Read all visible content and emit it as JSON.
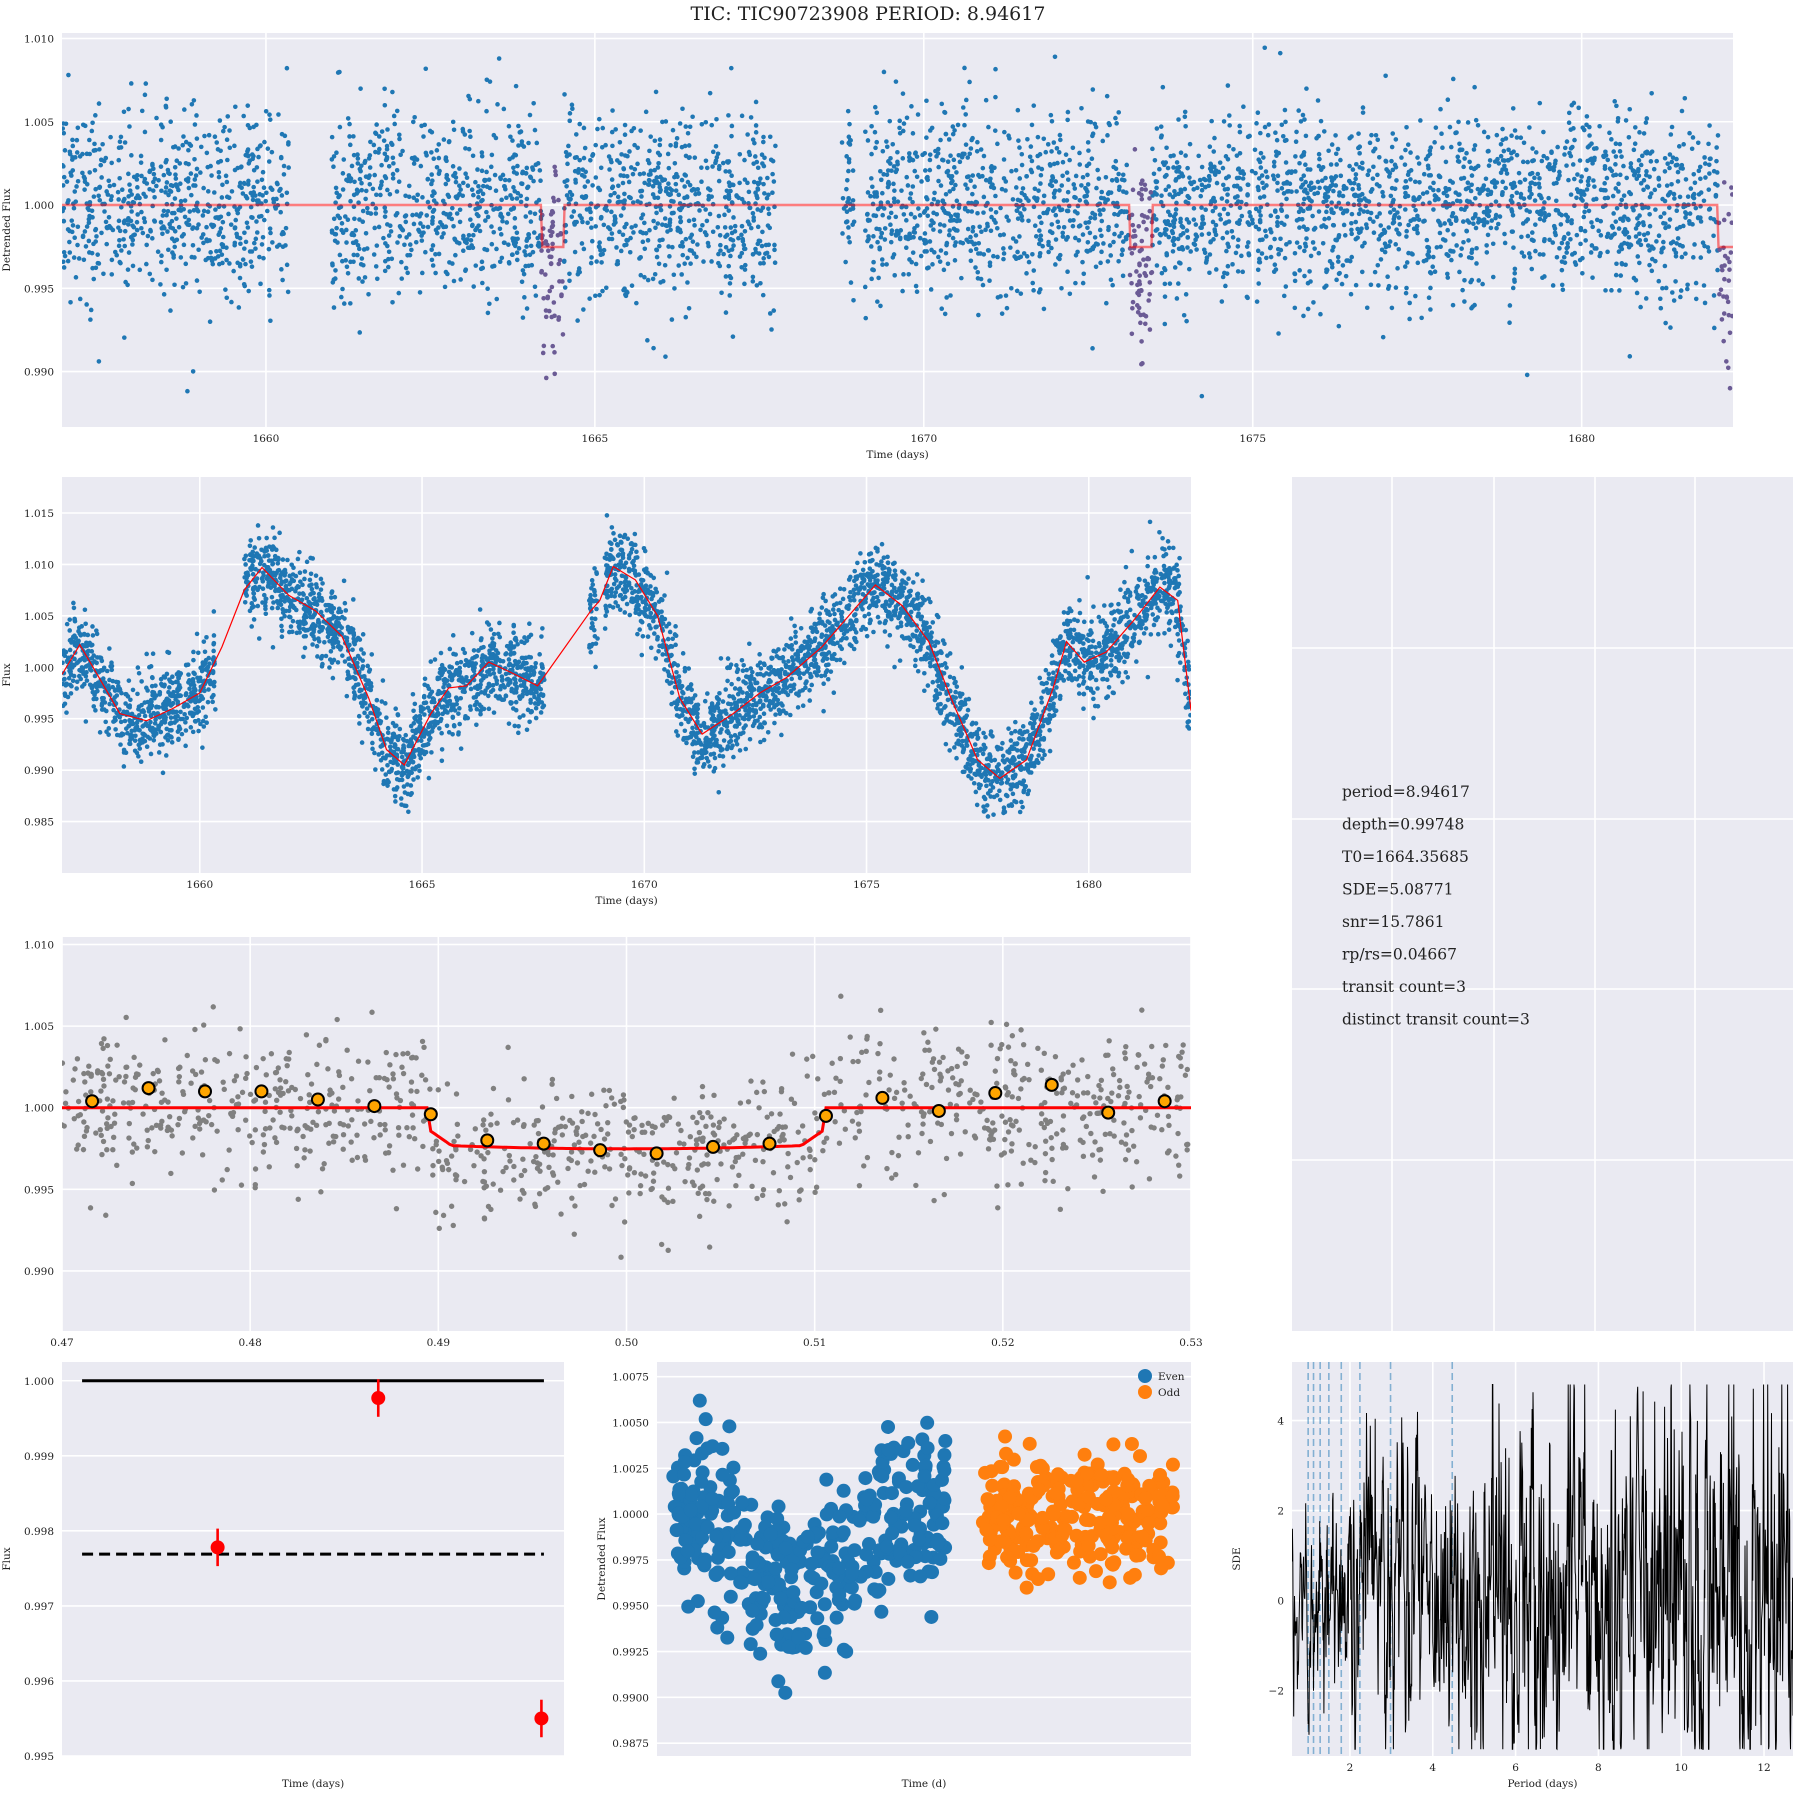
{
  "title": "TIC: TIC90723908 PERIOD: 8.94617",
  "colors": {
    "axes_bg": "#eaeaf2",
    "grid": "#ffffff",
    "blue": "#1f77b4",
    "orange": "#ff7f0e",
    "red": "#ff0000",
    "gray": "#808080",
    "transit_purple": "#6b5b95",
    "bin_fill": "#ffa500"
  },
  "chart_data": [
    {
      "id": "detrended-lightcurve",
      "type": "scatter",
      "title": "",
      "xlabel": "Time (days)",
      "ylabel": "Detrended Flux",
      "xlim": [
        1656.9,
        1682.3
      ],
      "ylim": [
        0.98667,
        1.01033
      ],
      "xticks": [
        1660,
        1665,
        1670,
        1675,
        1680
      ],
      "yticks": [
        "0.990",
        "0.995",
        "1.000",
        "1.005",
        "1.010"
      ],
      "yticks_values": [
        0.99,
        0.995,
        1.0,
        1.005,
        1.01
      ],
      "grid": true,
      "data_segments": [
        [
          1656.9,
          1660.35
        ],
        [
          1661.0,
          1667.75
        ],
        [
          1668.75,
          1668.95
        ],
        [
          1669.1,
          1682.3
        ]
      ],
      "scatter_sigma": 0.0028,
      "model_level": 1.0,
      "transit_depth": 0.99748,
      "transit_epochs": [
        1664.357,
        1673.303,
        1682.249
      ],
      "transit_half_width": 0.17
    },
    {
      "id": "raw-lightcurve",
      "type": "scatter",
      "title": "",
      "xlabel": "Time (days)",
      "ylabel": "Flux",
      "xlim": [
        1656.9,
        1682.3
      ],
      "ylim": [
        0.98,
        1.0185
      ],
      "xticks": [
        1660,
        1665,
        1670,
        1675,
        1680
      ],
      "yticks": [
        "0.985",
        "0.990",
        "0.995",
        "1.000",
        "1.005",
        "1.010",
        "1.015"
      ],
      "yticks_values": [
        0.985,
        0.99,
        0.995,
        1.0,
        1.005,
        1.01,
        1.015
      ],
      "grid": true,
      "trend_x": [
        1656.9,
        1657.3,
        1657.6,
        1658.2,
        1658.8,
        1659.4,
        1660.0,
        1660.5,
        1661.0,
        1661.4,
        1662.0,
        1662.6,
        1663.2,
        1663.8,
        1664.2,
        1664.6,
        1665.2,
        1665.6,
        1666.0,
        1666.5,
        1667.0,
        1667.6,
        1668.8,
        1669.0,
        1669.3,
        1669.8,
        1670.3,
        1670.8,
        1671.3,
        1672.0,
        1672.6,
        1673.2,
        1674.0,
        1674.6,
        1675.2,
        1675.8,
        1676.4,
        1676.9,
        1677.5,
        1678.0,
        1678.6,
        1679.2,
        1679.5,
        1679.9,
        1680.4,
        1681.0,
        1681.6,
        1682.0,
        1682.3
      ],
      "trend_y": [
        0.9993,
        1.0022,
        1.0,
        0.9955,
        0.9948,
        0.996,
        0.9975,
        1.002,
        1.0075,
        1.0097,
        1.007,
        1.0055,
        1.003,
        0.997,
        0.992,
        0.9905,
        0.9955,
        0.998,
        0.9982,
        1.0005,
        0.9995,
        0.9982,
        1.0055,
        1.0065,
        1.0098,
        1.0085,
        1.005,
        0.997,
        0.9935,
        0.9955,
        0.9975,
        0.999,
        1.002,
        1.005,
        1.008,
        1.006,
        1.0025,
        0.997,
        0.991,
        0.9892,
        0.991,
        0.998,
        1.0025,
        1.0005,
        1.0015,
        1.0045,
        1.0078,
        1.0065,
        0.9958
      ],
      "scatter_sigma": 0.0021
    },
    {
      "id": "phase-folded",
      "type": "scatter",
      "title": "",
      "xlabel": "",
      "ylabel": "",
      "xlim": [
        0.47,
        0.53
      ],
      "ylim": [
        0.98632,
        1.01046
      ],
      "xticks": [
        "0.47",
        "0.48",
        "0.49",
        "0.50",
        "0.51",
        "0.52",
        "0.53"
      ],
      "xticks_values": [
        0.47,
        0.48,
        0.49,
        0.5,
        0.51,
        0.52,
        0.53
      ],
      "yticks": [
        "0.990",
        "0.995",
        "1.000",
        "1.005",
        "1.010"
      ],
      "yticks_values": [
        0.99,
        0.995,
        1.0,
        1.005,
        1.01
      ],
      "grid": true,
      "transit_start": 0.4895,
      "transit_end": 0.5105,
      "transit_depth": 0.99748,
      "binned": {
        "x": [
          0.4716,
          0.4746,
          0.4776,
          0.4806,
          0.4836,
          0.4866,
          0.4896,
          0.4926,
          0.4956,
          0.4986,
          0.5016,
          0.5046,
          0.5076,
          0.5106,
          0.5136,
          0.5166,
          0.5196,
          0.5226,
          0.5256,
          0.5286
        ],
        "y": [
          1.0004,
          1.0012,
          1.001,
          1.001,
          1.0005,
          1.0001,
          0.9996,
          0.998,
          0.9978,
          0.9974,
          0.9972,
          0.9976,
          0.9978,
          0.9995,
          1.0006,
          0.9998,
          1.0009,
          1.0014,
          0.9997,
          1.0004
        ]
      }
    },
    {
      "id": "even-odd-depths",
      "type": "scatter",
      "title": "",
      "xlabel": "Time (days)",
      "ylabel": "Flux",
      "xlim": [
        0,
        1
      ],
      "ylim": [
        0.995,
        1.00025
      ],
      "yticks": [
        "0.995",
        "0.996",
        "0.997",
        "0.998",
        "0.999",
        "1.000"
      ],
      "yticks_values": [
        0.995,
        0.996,
        0.997,
        0.998,
        0.999,
        1.0
      ],
      "grid": true,
      "baseline": 1.0,
      "mean_depth": 0.99769,
      "points": [
        {
          "x": 0.31,
          "y": 0.99778,
          "err": 0.00025
        },
        {
          "x": 0.63,
          "y": 0.99977,
          "err": 0.00025
        },
        {
          "x": 0.955,
          "y": 0.9955,
          "err": 0.00025
        }
      ]
    },
    {
      "id": "even-odd-scatter",
      "type": "scatter",
      "title": "",
      "xlabel": "Time (d)",
      "ylabel": "Detrended Flux",
      "xlim": [
        0,
        1
      ],
      "ylim": [
        0.9868,
        1.0083
      ],
      "yticks": [
        "0.9875",
        "0.9900",
        "0.9925",
        "0.9950",
        "0.9975",
        "1.0000",
        "1.0025",
        "1.0050",
        "1.0075"
      ],
      "yticks_values": [
        0.9875,
        0.99,
        0.9925,
        0.995,
        0.9975,
        1.0,
        1.0025,
        1.005,
        1.0075
      ],
      "grid": true,
      "legend_position": "top-right",
      "series": [
        {
          "name": "Even",
          "x_range": [
            0.03,
            0.54
          ]
        },
        {
          "name": "Odd",
          "x_range": [
            0.61,
            0.97
          ]
        }
      ]
    },
    {
      "id": "tls-periodogram",
      "type": "line",
      "title": "",
      "xlabel": "Period (days)",
      "ylabel": "SDE",
      "xlim": [
        0.6,
        12.7
      ],
      "ylim": [
        -3.45,
        5.3
      ],
      "xticks": [
        "2",
        "4",
        "6",
        "8",
        "10",
        "12"
      ],
      "xticks_values": [
        2,
        4,
        6,
        8,
        10,
        12
      ],
      "yticks": [
        "−2",
        "0",
        "2",
        "4"
      ],
      "yticks_values": [
        -2,
        0,
        2,
        4
      ],
      "grid": true,
      "harmonic_lines": [
        0.99,
        1.12,
        1.28,
        1.49,
        1.79,
        2.24,
        2.98,
        4.47
      ],
      "peak_period": 8.946,
      "peak_sde": 5.08771
    }
  ],
  "info_panel": {
    "lines": [
      "period=8.94617",
      "depth=0.99748",
      "T0=1664.35685",
      "SDE=5.08771",
      "snr=15.7861",
      "rp/rs=0.04667",
      "transit count=3",
      "distinct transit count=3"
    ]
  }
}
